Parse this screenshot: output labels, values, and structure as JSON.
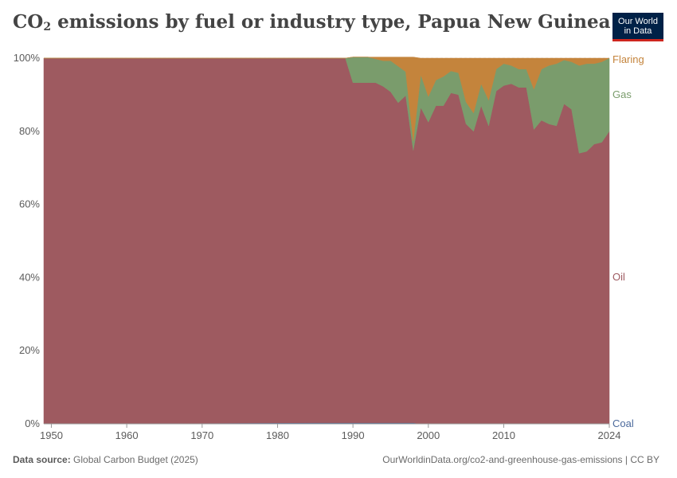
{
  "header": {
    "title_pre": "CO",
    "title_sub": "2",
    "title_post": " emissions by fuel or industry type, Papua New Guinea",
    "logo_line1": "Our World",
    "logo_line2": "in Data"
  },
  "footer": {
    "source_label": "Data source:",
    "source_value": " Global Carbon Budget (2025)",
    "url": "OurWorldinData.org/co2-and-greenhouse-gas-emissions | CC BY"
  },
  "colors": {
    "coal": "#4c6a9c",
    "oil": "#9e5a60",
    "gas": "#7a9c6c",
    "flaring": "#c4843c",
    "grid": "#dddddd",
    "axis_text": "#5b5b5b"
  },
  "chart_data": {
    "type": "area",
    "stacked": true,
    "normalized": true,
    "title": "CO₂ emissions by fuel or industry type, Papua New Guinea",
    "xlim": [
      1949,
      2024
    ],
    "ylim": [
      0,
      100
    ],
    "x_ticks": [
      "1950",
      "1960",
      "1970",
      "1980",
      "1990",
      "2000",
      "2010",
      "2024"
    ],
    "y_ticks": [
      "0%",
      "20%",
      "40%",
      "60%",
      "80%",
      "100%"
    ],
    "legend_placement": "right, labels at series ends",
    "x": [
      1949,
      1985,
      1989,
      1990,
      1991,
      1992,
      1993,
      1994,
      1995,
      1996,
      1997,
      1998,
      1999,
      2000,
      2001,
      2002,
      2003,
      2004,
      2005,
      2006,
      2007,
      2008,
      2009,
      2010,
      2011,
      2012,
      2013,
      2014,
      2015,
      2016,
      2017,
      2018,
      2019,
      2020,
      2021,
      2022,
      2023,
      2024
    ],
    "series": [
      {
        "name": "Coal",
        "color": "#4c6a9c",
        "values": [
          0,
          0.3,
          0.3,
          0.3,
          0.3,
          0.3,
          0.3,
          0.3,
          0.3,
          0.3,
          0.3,
          0.3,
          0,
          0,
          0,
          0,
          0,
          0,
          0,
          0,
          0,
          0,
          0,
          0,
          0,
          0,
          0,
          0,
          0,
          0,
          0,
          0,
          0,
          0,
          0,
          0,
          0,
          0
        ]
      },
      {
        "name": "Oil",
        "color": "#9e5a60",
        "values": [
          100,
          99.7,
          99.7,
          93,
          93,
          93,
          93,
          92,
          90.5,
          87.5,
          89.5,
          74.5,
          86.5,
          82.5,
          87,
          87,
          90.5,
          90,
          82,
          80,
          87,
          81.5,
          91,
          92.5,
          93,
          92,
          92,
          80.5,
          83,
          82,
          81.5,
          87.5,
          86,
          74,
          74.5,
          76.5,
          77,
          80
        ]
      },
      {
        "name": "Gas",
        "color": "#7a9c6c",
        "values": [
          0,
          0,
          0,
          7,
          7,
          7,
          6.5,
          7,
          8.5,
          10,
          6.5,
          2.5,
          9,
          7,
          7,
          8,
          6,
          6,
          6,
          5,
          6,
          7,
          6,
          6,
          5,
          5,
          5,
          11,
          14,
          16,
          17,
          12,
          13,
          24,
          24,
          22,
          22,
          20
        ]
      },
      {
        "name": "Flaring",
        "color": "#c4843c",
        "values": [
          0,
          0,
          0,
          0,
          0,
          0,
          0.5,
          1,
          1,
          2.5,
          4,
          23,
          4.5,
          10.5,
          6,
          5,
          3.5,
          4,
          12,
          15,
          7,
          11.5,
          3,
          1.5,
          2,
          3,
          3,
          8.5,
          3,
          2,
          1.5,
          0.5,
          1,
          2,
          1.5,
          1.5,
          1,
          0
        ]
      }
    ]
  }
}
